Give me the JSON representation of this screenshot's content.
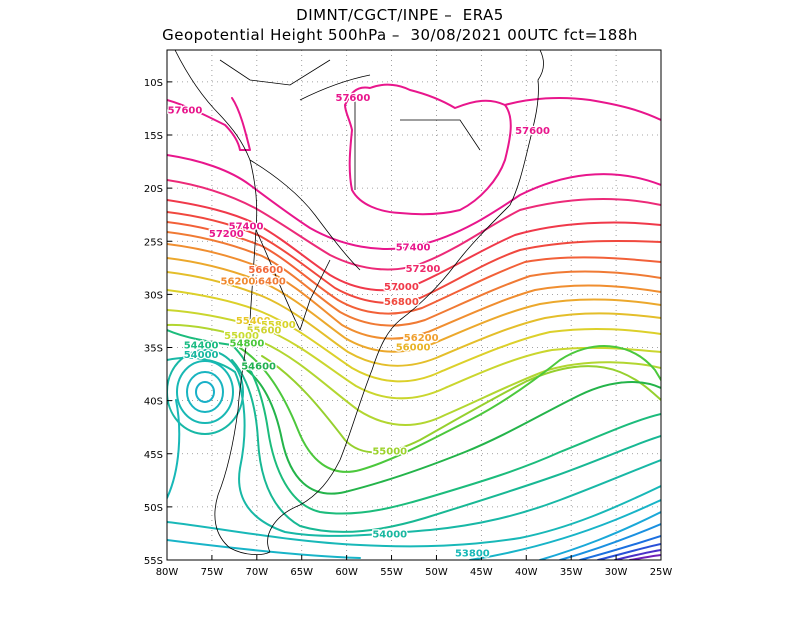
{
  "title": {
    "line1": "DIMNT/CGCT/INPE –  ERA5",
    "line2": "Geopotential Height 500hPa –  30/08/2021 00UTC fct=188h"
  },
  "axes": {
    "lon_ticks": [
      "80W",
      "75W",
      "70W",
      "65W",
      "60W",
      "55W",
      "50W",
      "45W",
      "40W",
      "35W",
      "30W",
      "25W"
    ],
    "lat_ticks": [
      "10S",
      "15S",
      "20S",
      "25S",
      "30S",
      "35S",
      "40S",
      "45S",
      "50S",
      "55S"
    ]
  },
  "map_extent": {
    "lon": [
      -80,
      -25
    ],
    "lat": [
      -55,
      -7
    ]
  },
  "contour_labels": [
    {
      "text": "57600",
      "lon": -78.0,
      "lat": -12.7,
      "color": "#e8168c"
    },
    {
      "text": "57600",
      "lon": -59.3,
      "lat": -11.5,
      "color": "#e8168c"
    },
    {
      "text": "57600",
      "lon": -39.3,
      "lat": -14.6,
      "color": "#e8168c"
    },
    {
      "text": "57400",
      "lon": -71.2,
      "lat": -23.6,
      "color": "#e8168c"
    },
    {
      "text": "57200",
      "lon": -73.4,
      "lat": -24.3,
      "color": "#e8168c"
    },
    {
      "text": "57400",
      "lon": -52.6,
      "lat": -25.6,
      "color": "#e8168c"
    },
    {
      "text": "57200",
      "lon": -51.5,
      "lat": -27.6,
      "color": "#ee2a6a"
    },
    {
      "text": "57000",
      "lon": -53.9,
      "lat": -29.3,
      "color": "#f0394a"
    },
    {
      "text": "56800",
      "lon": -53.9,
      "lat": -30.7,
      "color": "#f04a3e"
    },
    {
      "text": "56600",
      "lon": -69.0,
      "lat": -27.7,
      "color": "#f2683a"
    },
    {
      "text": "56400",
      "lon": -68.7,
      "lat": -28.8,
      "color": "#f07a34"
    },
    {
      "text": "56200",
      "lon": -72.1,
      "lat": -28.8,
      "color": "#f08a30"
    },
    {
      "text": "56200",
      "lon": -51.7,
      "lat": -34.1,
      "color": "#f0a030"
    },
    {
      "text": "56000",
      "lon": -52.6,
      "lat": -35.0,
      "color": "#e8b428"
    },
    {
      "text": "55400",
      "lon": -70.4,
      "lat": -32.5,
      "color": "#e8c828"
    },
    {
      "text": "55800",
      "lon": -67.6,
      "lat": -32.9,
      "color": "#d8d428"
    },
    {
      "text": "55600",
      "lon": -69.2,
      "lat": -33.4,
      "color": "#d0d430"
    },
    {
      "text": "55000",
      "lon": -71.7,
      "lat": -33.9,
      "color": "#c8dc30"
    },
    {
      "text": "54800",
      "lon": -71.1,
      "lat": -34.6,
      "color": "#4cc83c"
    },
    {
      "text": "54400",
      "lon": -76.2,
      "lat": -34.8,
      "color": "#1cbc84"
    },
    {
      "text": "54000",
      "lon": -76.2,
      "lat": -35.7,
      "color": "#18b8a0"
    },
    {
      "text": "54600",
      "lon": -69.8,
      "lat": -36.8,
      "color": "#20b050"
    },
    {
      "text": "55000",
      "lon": -55.2,
      "lat": -44.8,
      "color": "#9cd22c"
    },
    {
      "text": "54000",
      "lon": -55.2,
      "lat": -52.6,
      "color": "#18b8a0"
    },
    {
      "text": "53800",
      "lon": -46.0,
      "lat": -54.4,
      "color": "#18b8b8"
    }
  ],
  "colors": {
    "frame": "#000000",
    "grid": "#888888",
    "coast": "#000000"
  }
}
